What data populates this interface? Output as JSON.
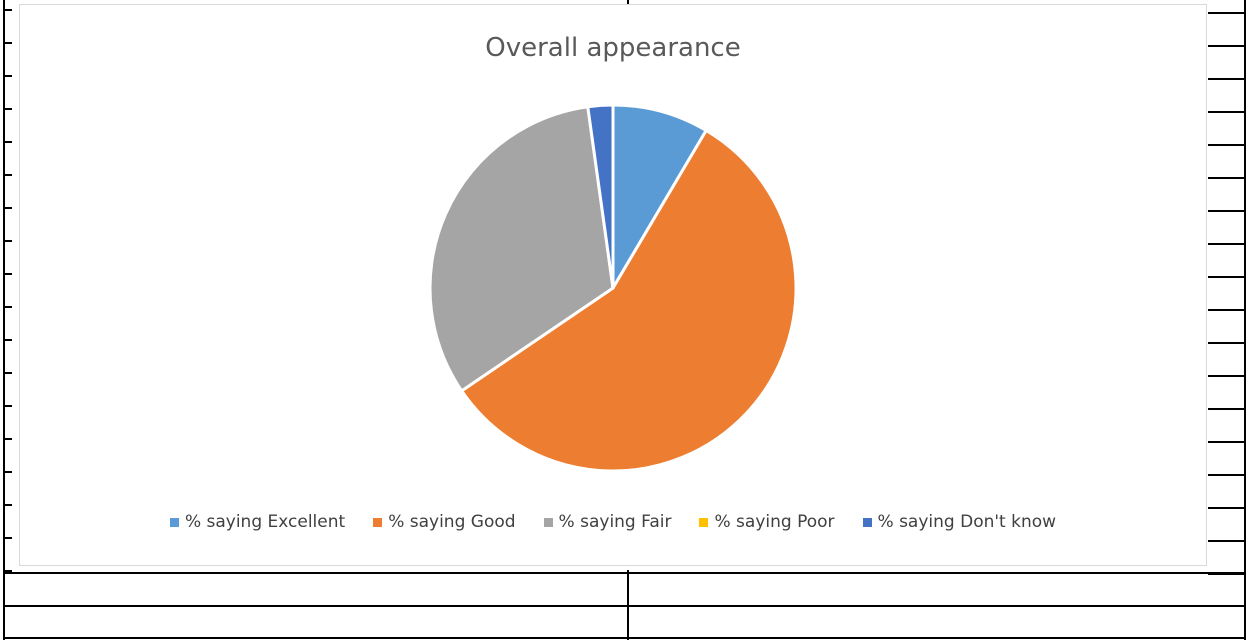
{
  "chart_data": {
    "type": "pie",
    "title": "Overall appearance",
    "legend_position": "bottom",
    "slices": [
      {
        "label": "% saying Excellent",
        "value": 8.5,
        "color": "#5b9bd5"
      },
      {
        "label": "% saying Good",
        "value": 57.0,
        "color": "#ed7d31"
      },
      {
        "label": "% saying Fair",
        "value": 32.3,
        "color": "#a5a5a5"
      },
      {
        "label": "% saying Poor",
        "value": 0,
        "color": "#ffc000"
      },
      {
        "label": "% saying Don't know",
        "value": 2.2,
        "color": "#4472c4"
      }
    ]
  }
}
